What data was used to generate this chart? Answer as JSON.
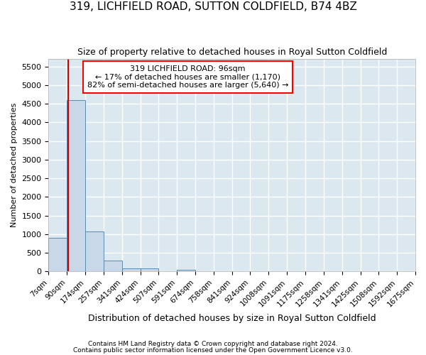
{
  "title": "319, LICHFIELD ROAD, SUTTON COLDFIELD, B74 4BZ",
  "subtitle": "Size of property relative to detached houses in Royal Sutton Coldfield",
  "xlabel": "Distribution of detached houses by size in Royal Sutton Coldfield",
  "ylabel": "Number of detached properties",
  "footnote1": "Contains HM Land Registry data © Crown copyright and database right 2024.",
  "footnote2": "Contains public sector information licensed under the Open Government Licence v3.0.",
  "bar_color": "#c8d8e8",
  "bar_edge_color": "#5a8ab0",
  "annotation_line1": "319 LICHFIELD ROAD: 96sqm",
  "annotation_line2": "← 17% of detached houses are smaller (1,170)",
  "annotation_line3": "82% of semi-detached houses are larger (5,640) →",
  "property_sqm": 96,
  "bin_edges": [
    7,
    90,
    174,
    257,
    341,
    424,
    507,
    591,
    674,
    758,
    841,
    924,
    1008,
    1091,
    1175,
    1258,
    1341,
    1425,
    1508,
    1592,
    1675
  ],
  "bar_heights": [
    900,
    4600,
    1070,
    290,
    90,
    80,
    0,
    50,
    0,
    0,
    0,
    0,
    0,
    0,
    0,
    0,
    0,
    0,
    0,
    0
  ],
  "ylim": [
    0,
    5700
  ],
  "yticks": [
    0,
    500,
    1000,
    1500,
    2000,
    2500,
    3000,
    3500,
    4000,
    4500,
    5000,
    5500
  ],
  "bg_color": "#dce8f0",
  "grid_color": "#ffffff",
  "red_line_color": "#cc0000",
  "title_fontsize": 11,
  "subtitle_fontsize": 9,
  "ylabel_fontsize": 8,
  "xlabel_fontsize": 9
}
